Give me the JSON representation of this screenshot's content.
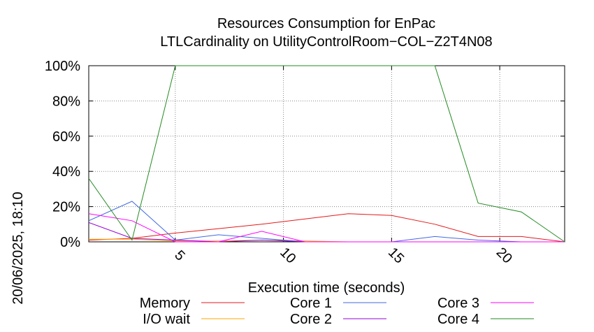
{
  "chart_data": {
    "type": "line",
    "title": [
      "Resources Consumption for EnPac",
      "LTLCardinality on UtilityControlRoom−COL−Z2T4N08"
    ],
    "xlabel": "Execution time (seconds)",
    "ylabel": "",
    "side_label": "20/06/2025, 18:10",
    "xlim": [
      1,
      23
    ],
    "ylim": [
      0,
      100
    ],
    "x_ticks": [
      5,
      10,
      15,
      20
    ],
    "y_ticks": [
      0,
      20,
      40,
      60,
      80,
      100
    ],
    "y_tick_labels": [
      "0%",
      "20%",
      "40%",
      "60%",
      "80%",
      "100%"
    ],
    "grid": true,
    "legend_position": "bottom",
    "series": [
      {
        "name": "Memory",
        "color": "#e41a1c",
        "points": [
          [
            1,
            1
          ],
          [
            3,
            2
          ],
          [
            5,
            5
          ],
          [
            7,
            7.5
          ],
          [
            9,
            10
          ],
          [
            11,
            13
          ],
          [
            13,
            16
          ],
          [
            15,
            15
          ],
          [
            17,
            10
          ],
          [
            19,
            3
          ],
          [
            21,
            3
          ],
          [
            23,
            0
          ]
        ]
      },
      {
        "name": "I/O wait",
        "color": "#ffa500",
        "points": [
          [
            1,
            1.5
          ],
          [
            3,
            1.5
          ],
          [
            5,
            0.5
          ],
          [
            7,
            0.5
          ],
          [
            9,
            1
          ],
          [
            11,
            0.5
          ],
          [
            13,
            0
          ],
          [
            15,
            0
          ],
          [
            17,
            0
          ],
          [
            19,
            0
          ],
          [
            21,
            0
          ],
          [
            23,
            0
          ]
        ]
      },
      {
        "name": "Core 1",
        "color": "#4169e1",
        "points": [
          [
            1,
            12
          ],
          [
            3,
            23
          ],
          [
            5,
            1
          ],
          [
            7,
            4
          ],
          [
            9,
            2
          ],
          [
            11,
            0
          ],
          [
            13,
            0
          ],
          [
            15,
            0
          ],
          [
            17,
            3
          ],
          [
            19,
            1
          ],
          [
            21,
            0
          ],
          [
            23,
            0
          ]
        ]
      },
      {
        "name": "Core 2",
        "color": "#9400d3",
        "points": [
          [
            1,
            11
          ],
          [
            3,
            2
          ],
          [
            5,
            1
          ],
          [
            7,
            0
          ],
          [
            9,
            1
          ],
          [
            11,
            0
          ],
          [
            13,
            0
          ],
          [
            15,
            0
          ],
          [
            17,
            0
          ],
          [
            19,
            0
          ],
          [
            21,
            0
          ],
          [
            23,
            0
          ]
        ]
      },
      {
        "name": "Core 3",
        "color": "#ff00ff",
        "points": [
          [
            1,
            16
          ],
          [
            3,
            12
          ],
          [
            5,
            0
          ],
          [
            7,
            0
          ],
          [
            9,
            6
          ],
          [
            11,
            0
          ],
          [
            13,
            0
          ],
          [
            15,
            0
          ],
          [
            17,
            0
          ],
          [
            19,
            0
          ],
          [
            21,
            0
          ],
          [
            23,
            0
          ]
        ]
      },
      {
        "name": "Core 4",
        "color": "#228b22",
        "points": [
          [
            1,
            36
          ],
          [
            3,
            1
          ],
          [
            5,
            100
          ],
          [
            7,
            100
          ],
          [
            9,
            100
          ],
          [
            11,
            100
          ],
          [
            13,
            100
          ],
          [
            15,
            100
          ],
          [
            17,
            100
          ],
          [
            19,
            22
          ],
          [
            21,
            17
          ],
          [
            23,
            0
          ]
        ]
      }
    ]
  }
}
